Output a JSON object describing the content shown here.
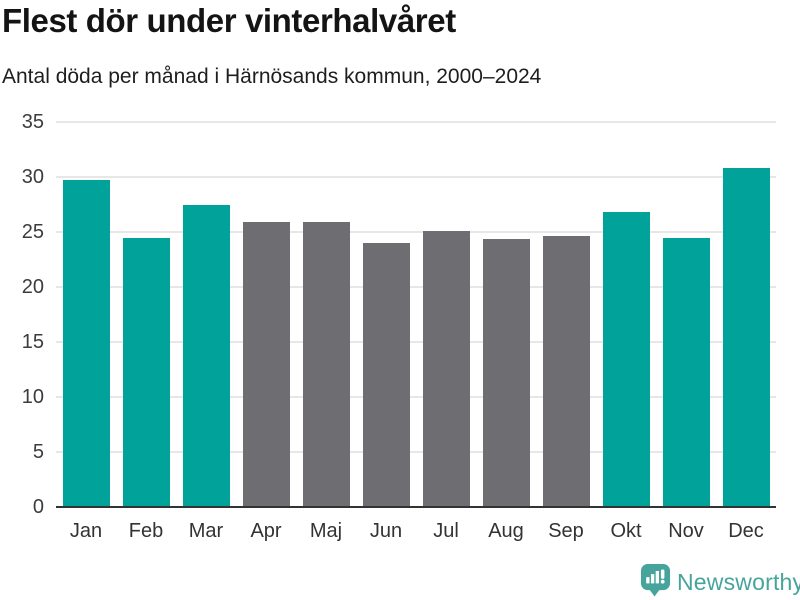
{
  "header": {
    "title": "Flest dör under vinterhalvåret",
    "subtitle": "Antal döda per månad i Härnösands kommun, 2000–2024"
  },
  "chart_data": {
    "type": "bar",
    "categories": [
      "Jan",
      "Feb",
      "Mar",
      "Apr",
      "Maj",
      "Jun",
      "Jul",
      "Aug",
      "Sep",
      "Okt",
      "Nov",
      "Dec"
    ],
    "values": [
      29.7,
      24.5,
      27.5,
      25.9,
      25.9,
      24.0,
      25.1,
      24.4,
      24.6,
      26.8,
      24.5,
      30.8
    ],
    "highlighted": [
      true,
      true,
      true,
      false,
      false,
      false,
      false,
      false,
      false,
      true,
      true,
      true
    ],
    "title": "Flest dör under vinterhalvåret",
    "subtitle": "Antal döda per månad i Härnösands kommun, 2000–2024",
    "xlabel": "",
    "ylabel": "",
    "ylim": [
      0,
      35
    ],
    "yticks": [
      0,
      5,
      10,
      15,
      20,
      25,
      30,
      35
    ],
    "grid": true,
    "legend_position": "none",
    "colors": {
      "highlight": "#00a29a",
      "default": "#6d6d72",
      "gridline": "#e7e7e7",
      "axis_line": "#333333",
      "tick_text": "#3c3c3c"
    }
  },
  "footer": {
    "brand": "Newsworthy",
    "brand_color": "#47a49d"
  }
}
